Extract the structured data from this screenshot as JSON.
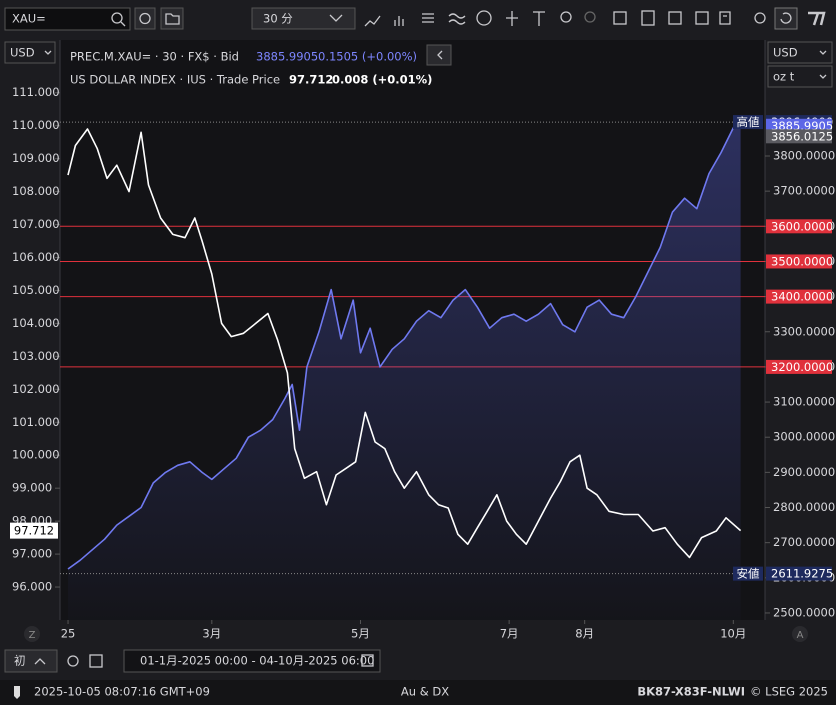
{
  "toolbar": {
    "symbol": "XAU=",
    "interval": "30 分"
  },
  "left_panel": {
    "currency": "USD"
  },
  "right_panel": {
    "currency": "USD",
    "unit": "oz t"
  },
  "chart_data": {
    "type": "line",
    "series": [
      {
        "name": "PREC.M.XAU= · 30 · FX$ · Bid",
        "last": "3885.9905",
        "change": "0.1505 (+0.00%)",
        "color": "#6f79f0",
        "axis": "y2",
        "area": true,
        "x": [
          0,
          5,
          10,
          15,
          20,
          25,
          30,
          35,
          40,
          45,
          50,
          55,
          59,
          64,
          69,
          74,
          79,
          84,
          89,
          92,
          95,
          98,
          103,
          108,
          112,
          117,
          120,
          124,
          128,
          133,
          138,
          143,
          148,
          153,
          158,
          163,
          168,
          173,
          178,
          183,
          188,
          193,
          198,
          203,
          208,
          213,
          218,
          223,
          228,
          233,
          238,
          243,
          248,
          253,
          258,
          263,
          268,
          273,
          276
        ],
        "values": [
          2625,
          2650,
          2680,
          2710,
          2750,
          2775,
          2800,
          2870,
          2900,
          2920,
          2930,
          2900,
          2880,
          2910,
          2940,
          3000,
          3020,
          3050,
          3110,
          3150,
          3020,
          3200,
          3300,
          3420,
          3280,
          3390,
          3240,
          3310,
          3200,
          3250,
          3280,
          3330,
          3360,
          3340,
          3390,
          3420,
          3370,
          3310,
          3340,
          3350,
          3330,
          3350,
          3380,
          3320,
          3300,
          3370,
          3390,
          3350,
          3340,
          3400,
          3470,
          3540,
          3640,
          3680,
          3650,
          3750,
          3810,
          3880,
          3885.9905
        ]
      },
      {
        "name": "US DOLLAR INDEX · IUS · Trade Price",
        "last": "97.712",
        "change": "0.008 (+0.01%)",
        "color": "#ffffff",
        "axis": "y",
        "area": false,
        "x": [
          0,
          3,
          8,
          12,
          16,
          20,
          25,
          30,
          33,
          38,
          43,
          48,
          52,
          55,
          59,
          63,
          67,
          72,
          77,
          82,
          86,
          90,
          93,
          97,
          102,
          106,
          110,
          114,
          118,
          122,
          126,
          130,
          134,
          138,
          143,
          148,
          152,
          156,
          160,
          164,
          168,
          172,
          176,
          180,
          184,
          188,
          193,
          198,
          202,
          206,
          210,
          213,
          217,
          222,
          228,
          234,
          240,
          245,
          250,
          255,
          260,
          266,
          270,
          276
        ],
        "values": [
          108.5,
          109.4,
          109.9,
          109.3,
          108.4,
          108.8,
          108.0,
          109.8,
          108.2,
          107.2,
          106.7,
          106.6,
          107.2,
          106.5,
          105.5,
          104.0,
          103.6,
          103.7,
          104.0,
          104.3,
          103.5,
          102.5,
          100.2,
          99.3,
          99.5,
          98.5,
          99.4,
          99.6,
          99.8,
          101.3,
          100.4,
          100.2,
          99.5,
          99.0,
          99.5,
          98.8,
          98.5,
          98.4,
          97.6,
          97.3,
          97.8,
          98.3,
          98.8,
          98.0,
          97.6,
          97.3,
          98.0,
          98.7,
          99.2,
          99.8,
          100.0,
          99.0,
          98.8,
          98.3,
          98.2,
          98.2,
          97.7,
          97.8,
          97.3,
          96.9,
          97.5,
          97.7,
          98.1,
          97.712
        ]
      }
    ],
    "xlim": [
      -3.3,
      286
    ],
    "xticks": [
      {
        "value": 0,
        "label": "25"
      },
      {
        "value": 59,
        "label": "3月"
      },
      {
        "value": 120,
        "label": "5月"
      },
      {
        "value": 181,
        "label": "7月"
      },
      {
        "value": 212,
        "label": "8月"
      },
      {
        "value": 273,
        "label": "10月"
      }
    ],
    "ylim": [
      95,
      112.6
    ],
    "yticks": [
      {
        "value": 96,
        "label": "96.000"
      },
      {
        "value": 97,
        "label": "97.000"
      },
      {
        "value": 98,
        "label": "98.000"
      },
      {
        "value": 99,
        "label": "99.000"
      },
      {
        "value": 100,
        "label": "100.000"
      },
      {
        "value": 101,
        "label": "101.000"
      },
      {
        "value": 102,
        "label": "102.000"
      },
      {
        "value": 103,
        "label": "103.000"
      },
      {
        "value": 104,
        "label": "104.000"
      },
      {
        "value": 105,
        "label": "105.000"
      },
      {
        "value": 106,
        "label": "106.000"
      },
      {
        "value": 107,
        "label": "107.000"
      },
      {
        "value": 108,
        "label": "108.000"
      },
      {
        "value": 109,
        "label": "109.000"
      },
      {
        "value": 110,
        "label": "110.000"
      },
      {
        "value": 111,
        "label": "111.000"
      }
    ],
    "y2lim": [
      2480,
      4130
    ],
    "y2ticks": [
      {
        "value": 2500,
        "label": "2500.0000"
      },
      {
        "value": 2600,
        "label": "2600.0000"
      },
      {
        "value": 2700,
        "label": "2700.0000"
      },
      {
        "value": 2800,
        "label": "2800.0000"
      },
      {
        "value": 2900,
        "label": "2900.0000"
      },
      {
        "value": 3000,
        "label": "3000.0000"
      },
      {
        "value": 3100,
        "label": "3100.0000"
      },
      {
        "value": 3200,
        "label": "3200.0000"
      },
      {
        "value": 3300,
        "label": "3300.0000"
      },
      {
        "value": 3400,
        "label": "3400.0000"
      },
      {
        "value": 3500,
        "label": "3500.0000"
      },
      {
        "value": 3600,
        "label": "3600.0000"
      },
      {
        "value": 3700,
        "label": "3700.0000"
      },
      {
        "value": 3800,
        "label": "3800.0000"
      }
    ],
    "levels": {
      "color": "#e0313c",
      "prices": [
        {
          "value": 3600,
          "label": "3600.0000"
        },
        {
          "value": 3500,
          "label": "3500.0000"
        },
        {
          "value": 3400,
          "label": "3400.0000"
        },
        {
          "value": 3200,
          "label": "3200.0000"
        }
      ]
    },
    "price_tags": [
      {
        "tag": "高値",
        "price": {
          "value": 3896.49,
          "label": "3896.4900"
        },
        "color": "#1e2a5e",
        "line": "dotted"
      },
      {
        "price": {
          "value": 3885.9905,
          "label": "3885.9905"
        },
        "color": "#5c66e6"
      },
      {
        "price": {
          "value": 3856.0125,
          "label": "3856.0125"
        },
        "color": "#5a5a60"
      },
      {
        "tag": "安値",
        "price": {
          "value": 2611.9275,
          "label": "2611.9275"
        },
        "color": "#1e2a5e",
        "line": "dotted"
      }
    ],
    "left_tag": 97.712
  },
  "axis_corners": {
    "left": "Z",
    "right": "A"
  },
  "footer": {
    "range_button": "初",
    "date_range": "01-1月-2025 00:00  - 04-10月-2025 06:00",
    "timestamp": "2025-10-05 08:07:16 GMT+09",
    "instruments": "Au & DX",
    "id": "BK87-X83F-NLWI",
    "copyright": "© LSEG 2025"
  }
}
